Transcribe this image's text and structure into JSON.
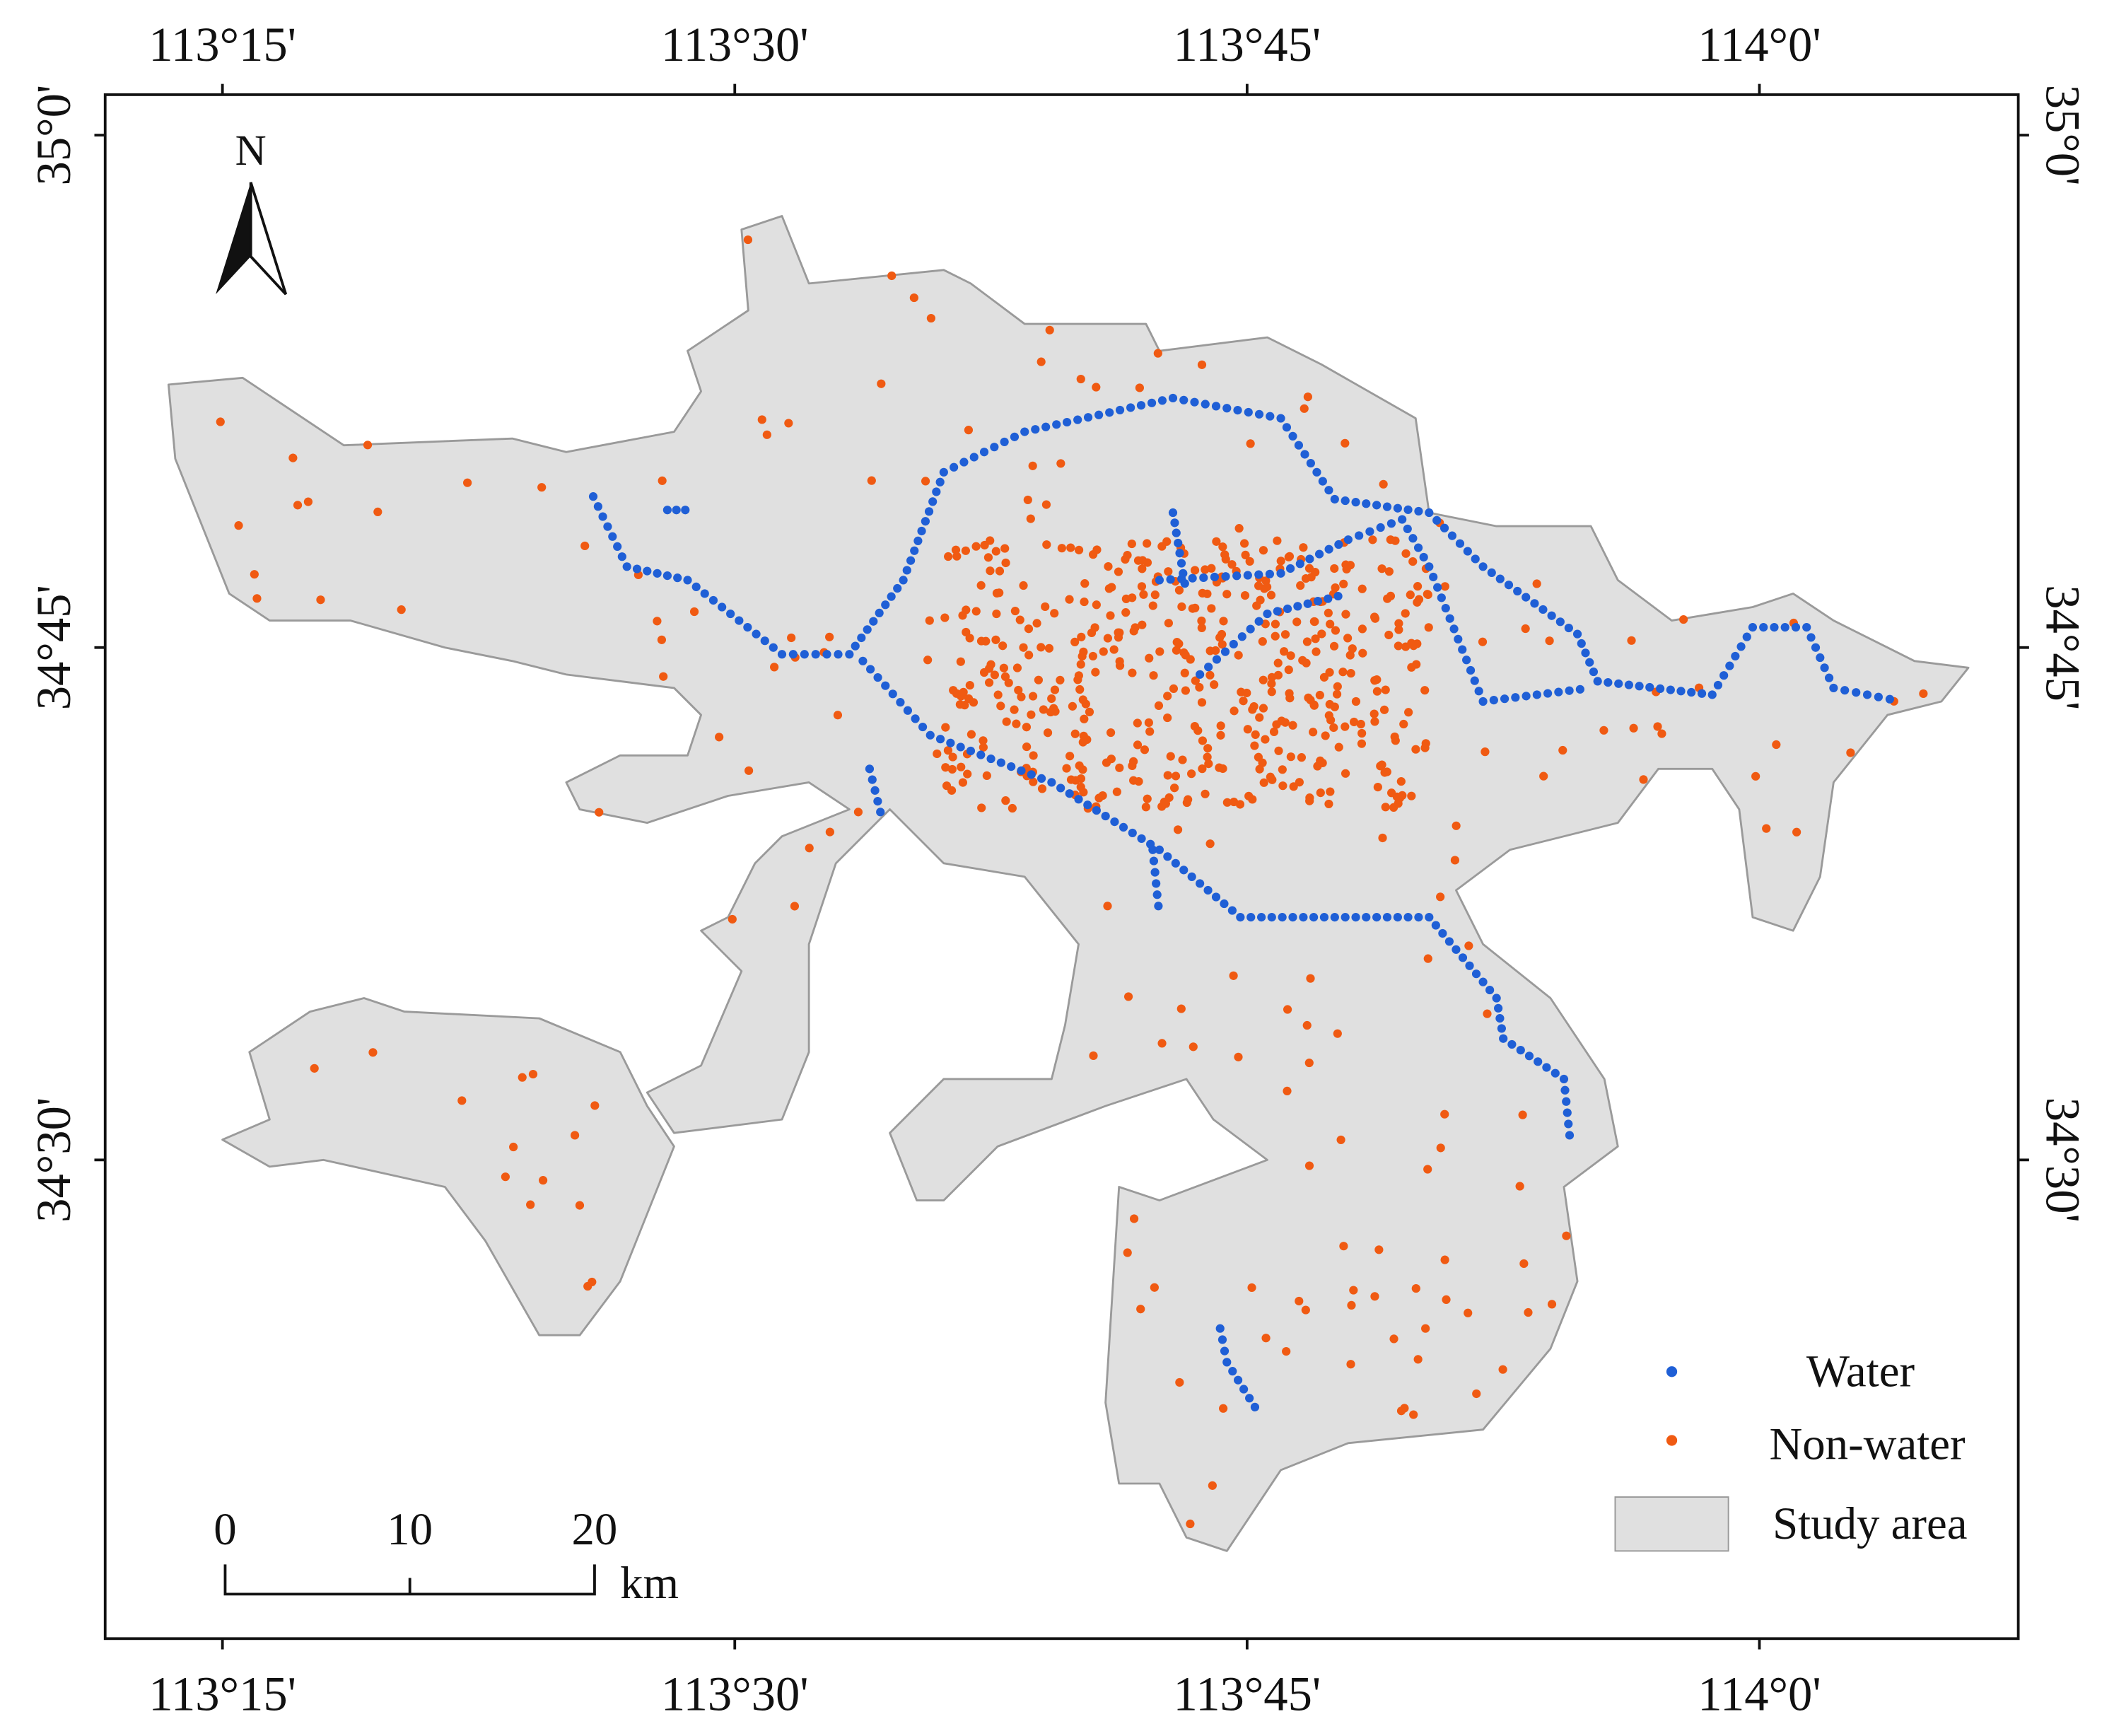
{
  "north": "N",
  "top_axis": [
    "113°15'",
    "113°30'",
    "113°45'",
    "114°0'"
  ],
  "bottom_axis": [
    "113°15'",
    "113°30'",
    "113°45'",
    "114°0'"
  ],
  "left_axis": [
    "35°0'",
    "34°45'",
    "34°30'"
  ],
  "right_axis": [
    "35°0'",
    "34°45'",
    "34°30'"
  ],
  "legend": {
    "items": [
      "Water",
      "Non-water",
      "Study area"
    ]
  },
  "scale_bar": {
    "labels": [
      "0",
      "10",
      "20"
    ],
    "unit": "km"
  }
}
